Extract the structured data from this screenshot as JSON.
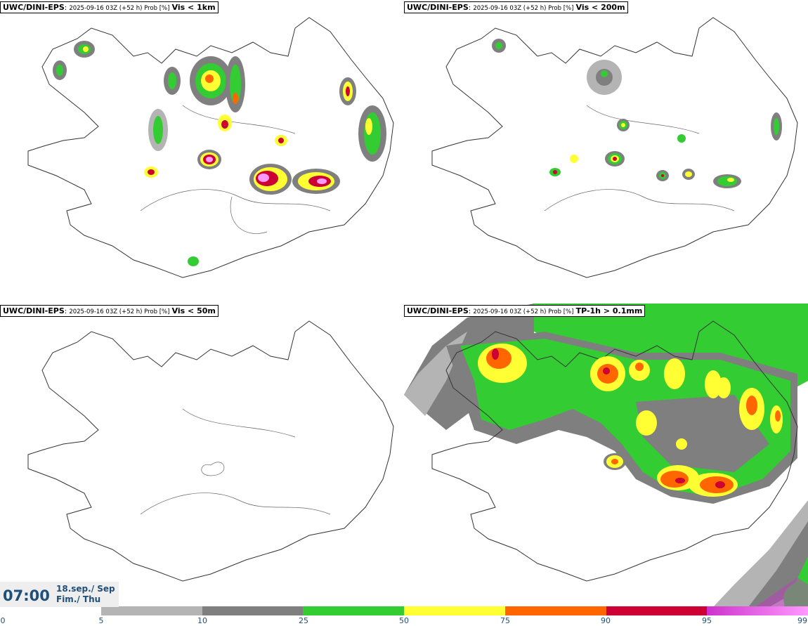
{
  "panels": [
    {
      "model": "UWC/DINI-EPS",
      "meta": "2025-09-16 03Z (+52 h) Prob [%]",
      "field": "Vis < 1km"
    },
    {
      "model": "UWC/DINI-EPS",
      "meta": "2025-09-16 03Z (+52 h) Prob [%]",
      "field": "Vis < 200m"
    },
    {
      "model": "UWC/DINI-EPS",
      "meta": "2025-09-16 03Z (+52 h) Prob [%]",
      "field": "Vis < 50m"
    },
    {
      "model": "UWC/DINI-EPS",
      "meta": "2025-09-16 03Z (+52 h) Prob [%]",
      "field": "TP-1h > 0.1mm"
    }
  ],
  "valid_time": {
    "clock": "07:00",
    "date_line1": "18.sep./ Sep",
    "date_line2": "Fim./ Thu"
  },
  "colorbar": {
    "ticks": [
      "0",
      "5",
      "10",
      "25",
      "50",
      "75",
      "90",
      "95",
      "99"
    ],
    "colors": [
      "#b4b4b4",
      "#7f7f7f",
      "#33cc33",
      "#ffff33",
      "#ff6600",
      "#cc0033",
      "#cc33cc",
      "#ff99ff"
    ]
  }
}
